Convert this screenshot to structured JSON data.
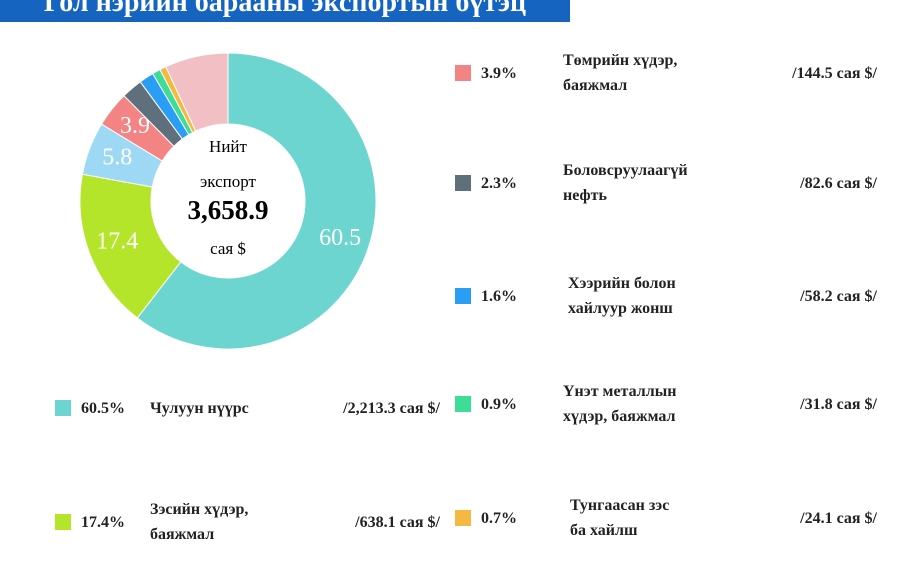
{
  "chart_data": {
    "type": "donut",
    "title": "Гол нэрийн барааны экспортын бүтэц",
    "center_lines": [
      "Нийт",
      "экспорт"
    ],
    "total": {
      "value": 3658.9,
      "label": "3,658.9"
    },
    "total_unit": "сая $",
    "categories": [
      "Чулуун нүүрс",
      "Зэсийн хүдэр,\nбаяжмал",
      null,
      "Төмрийн хүдэр,\nбаяжмал",
      "Боловсруулаагүй\nнефть",
      "Хээрийн болон\nхайлуур жонш",
      "Үнэт металлын\nхүдэр, баяжмал",
      "Тунгаасан зэс\nба хайлш",
      null
    ],
    "values": [
      60.5,
      17.4,
      5.8,
      3.9,
      2.3,
      1.6,
      0.9,
      0.7,
      6.9
    ],
    "legend_labels": [
      "60.5%",
      "17.4%",
      null,
      "3.9%",
      "2.3%",
      "1.6%",
      "0.9%",
      "0.7%",
      null
    ],
    "amounts": [
      2213.3,
      638.1,
      null,
      144.5,
      82.6,
      58.2,
      31.8,
      24.1,
      null
    ],
    "amount_labels": [
      "/2,213.3 сая $/",
      "/638.1 сая $/",
      null,
      "/144.5 сая $/",
      "/82.6 сая $/",
      "/58.2 сая $/",
      "/31.8 сая $/",
      "/24.1 сая $/",
      null
    ],
    "labeled_slices": [
      true,
      true,
      true,
      true,
      false,
      false,
      false,
      false,
      false
    ],
    "colors": [
      "#6dd5cf",
      "#b5e52a",
      "#9dd9f5",
      "#f48484",
      "#5f6f7c",
      "#2a9df4",
      "#3ddc97",
      "#f5b942",
      "#f2c0c4"
    ]
  }
}
